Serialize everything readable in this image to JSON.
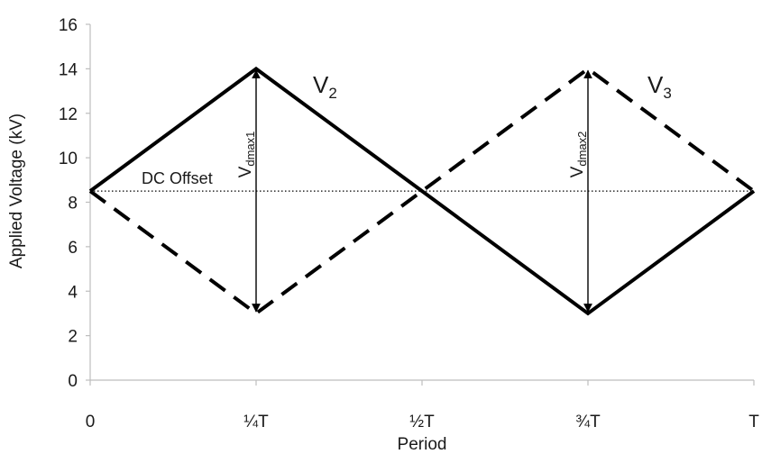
{
  "chart_data": {
    "type": "line",
    "xlabel": "Period",
    "ylabel": "Applied Voltage (kV)",
    "ylim": [
      0,
      16
    ],
    "yticks": [
      "0",
      "2",
      "4",
      "6",
      "8",
      "10",
      "12",
      "14",
      "16"
    ],
    "categories": [
      "0",
      "¼T",
      "½T",
      "¾T",
      "T"
    ],
    "xlim": [
      0,
      1
    ],
    "x": [
      0,
      0.25,
      0.5,
      0.75,
      1
    ],
    "series": [
      {
        "name": "V",
        "sub": "2",
        "style": "solid",
        "values": [
          8.5,
          14,
          8.5,
          3,
          8.5
        ]
      },
      {
        "name": "V",
        "sub": "3",
        "style": "dashed",
        "values": [
          8.5,
          3,
          8.5,
          14,
          8.5
        ]
      }
    ],
    "dc_offset": {
      "label": "DC Offset",
      "value": 8.5,
      "style": "dotted"
    },
    "arrows": [
      {
        "label": "V",
        "sub": "dmax1",
        "x": 0.25,
        "y_from": 3,
        "y_to": 14
      },
      {
        "label": "V",
        "sub": "dmax2",
        "x": 0.75,
        "y_from": 3,
        "y_to": 14
      }
    ],
    "grid": false,
    "colors": {
      "line": "#000000",
      "text": "#1a1a1a"
    }
  }
}
